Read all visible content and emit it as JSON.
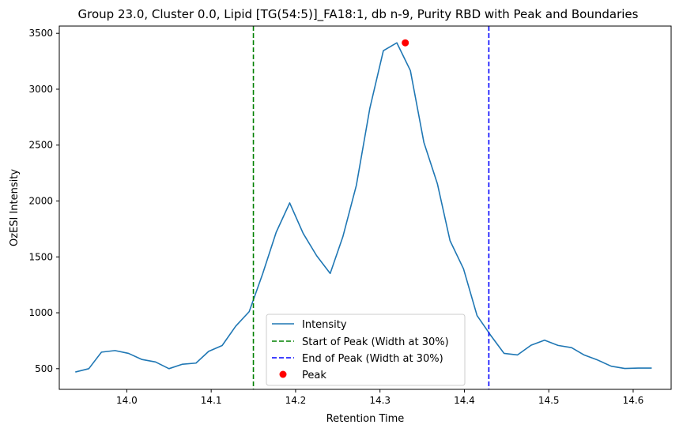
{
  "chart_data": {
    "type": "line",
    "title": "Group 23.0, Cluster 0.0, Lipid [TG(54:5)]_FA18:1, db n-9, Purity RBD with Peak and Boundaries",
    "xlabel": "Retention Time",
    "ylabel": "OzESI Intensity",
    "xlim": [
      13.92,
      14.645
    ],
    "ylim": [
      315,
      3565
    ],
    "xticks": [
      14.0,
      14.1,
      14.2,
      14.3,
      14.4,
      14.5,
      14.6
    ],
    "xtick_labels": [
      "14.0",
      "14.1",
      "14.2",
      "14.3",
      "14.4",
      "14.5",
      "14.6"
    ],
    "yticks": [
      500,
      1000,
      1500,
      2000,
      2500,
      3000,
      3500
    ],
    "ytick_labels": [
      "500",
      "1000",
      "1500",
      "2000",
      "2500",
      "3000",
      "3500"
    ],
    "grid": false,
    "legend_position": "lower center",
    "series": [
      {
        "name": "Intensity",
        "color": "#1f77b4",
        "x": [
          13.939,
          13.955,
          13.97,
          13.986,
          14.002,
          14.018,
          14.034,
          14.05,
          14.066,
          14.082,
          14.097,
          14.113,
          14.129,
          14.145,
          14.161,
          14.177,
          14.193,
          14.209,
          14.225,
          14.241,
          14.256,
          14.272,
          14.288,
          14.304,
          14.32,
          14.336,
          14.352,
          14.368,
          14.383,
          14.399,
          14.415,
          14.431,
          14.447,
          14.463,
          14.479,
          14.495,
          14.511,
          14.527,
          14.542,
          14.558,
          14.574,
          14.59,
          14.606,
          14.622
        ],
        "y": [
          470,
          500,
          648,
          662,
          637,
          582,
          560,
          500,
          540,
          550,
          655,
          707,
          880,
          1010,
          1349,
          1720,
          1983,
          1710,
          1510,
          1352,
          1680,
          2140,
          2830,
          3345,
          3415,
          3167,
          2525,
          2155,
          1645,
          1393,
          975,
          800,
          637,
          623,
          710,
          755,
          708,
          688,
          622,
          577,
          522,
          502,
          505,
          505
        ]
      }
    ],
    "boundaries": [
      {
        "name": "Start of Peak (Width at 30%)",
        "x": 14.15,
        "color": "#008000",
        "style": "dashed"
      },
      {
        "name": "End of Peak (Width at 30%)",
        "x": 14.429,
        "color": "#0000ff",
        "style": "dashed"
      }
    ],
    "peak": {
      "name": "Peak",
      "x": 14.33,
      "y": 3415,
      "color": "#ff0000"
    }
  }
}
